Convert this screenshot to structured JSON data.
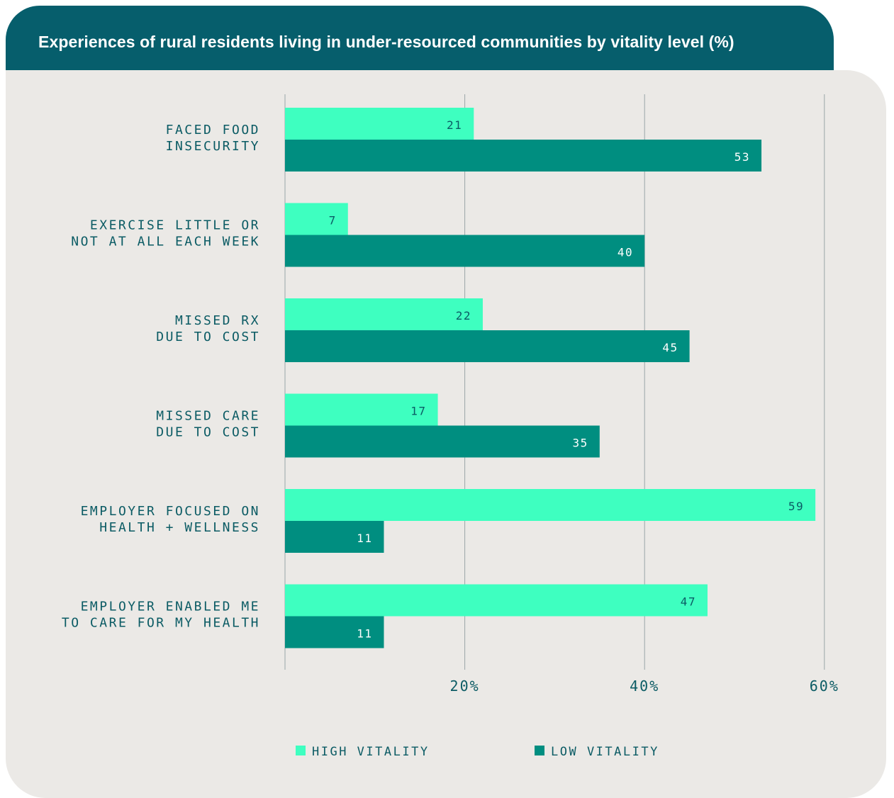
{
  "title": "Experiences of rural residents living in under-resourced communities by vitality level (%)",
  "colors": {
    "header_bg": "#065e6c",
    "panel_bg": "#ebe9e6",
    "high_vitality": "#3effc0",
    "low_vitality": "#008e80",
    "text": "#0b5b64",
    "gridline": "#9aa6a8"
  },
  "chart_data": {
    "type": "bar",
    "orientation": "horizontal",
    "categories": [
      [
        "FACED FOOD",
        "INSECURITY"
      ],
      [
        "EXERCISE LITTLE OR",
        "NOT AT ALL EACH WEEK"
      ],
      [
        "MISSED RX",
        "DUE TO COST"
      ],
      [
        "MISSED CARE",
        "DUE TO COST"
      ],
      [
        "EMPLOYER FOCUSED ON",
        "HEALTH + WELLNESS"
      ],
      [
        "EMPLOYER ENABLED ME",
        "TO CARE FOR MY HEALTH"
      ]
    ],
    "series": [
      {
        "name": "HIGH VITALITY",
        "values": [
          21,
          7,
          22,
          17,
          59,
          47
        ]
      },
      {
        "name": "LOW VITALITY",
        "values": [
          53,
          40,
          45,
          35,
          11,
          11
        ]
      }
    ],
    "xlim": [
      0,
      60
    ],
    "xticks": [
      {
        "value": 20,
        "label": "20%"
      },
      {
        "value": 40,
        "label": "40%"
      },
      {
        "value": 60,
        "label": "60%"
      }
    ],
    "grid": true,
    "legend": "bottom"
  }
}
